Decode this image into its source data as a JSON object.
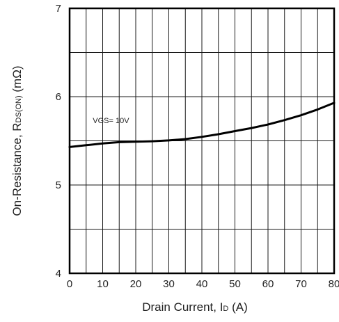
{
  "chart_data": {
    "type": "line",
    "xlabel": {
      "prefix": "Drain Current, I",
      "sub": "D",
      "suffix": " (A)"
    },
    "ylabel": {
      "prefix": "On-Resistance, R",
      "sub": "DS(ON)",
      "suffix": " (mΩ)"
    },
    "xlim": [
      0,
      80
    ],
    "ylim": [
      4,
      7
    ],
    "x_ticks": [
      "0",
      "10",
      "20",
      "30",
      "40",
      "50",
      "60",
      "70",
      "80"
    ],
    "y_ticks": [
      "4",
      "5",
      "6",
      "7"
    ],
    "grid": true,
    "annotation": {
      "prefix": "V",
      "sub": "GS",
      "suffix": "= 10V"
    },
    "series": [
      {
        "x": [
          0,
          5,
          10,
          15,
          20,
          25,
          30,
          35,
          40,
          45,
          50,
          55,
          60,
          65,
          70,
          75,
          80
        ],
        "y": [
          5.43,
          5.45,
          5.47,
          5.485,
          5.49,
          5.495,
          5.505,
          5.52,
          5.545,
          5.575,
          5.61,
          5.645,
          5.685,
          5.735,
          5.79,
          5.855,
          5.93
        ]
      }
    ],
    "colors": {
      "line": "#000000",
      "grid": "#1a1a1a",
      "frame": "#000000"
    }
  }
}
